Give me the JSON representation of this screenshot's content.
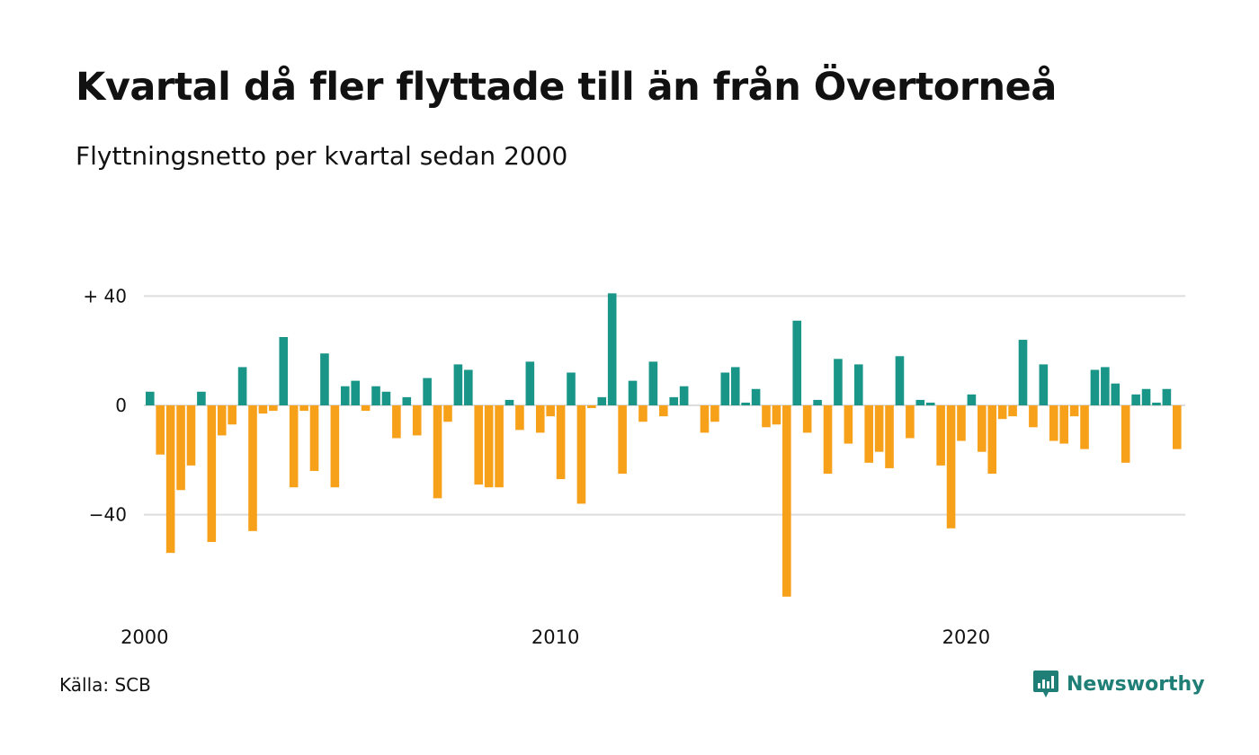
{
  "title": "Kvartal då fler flyttade till än från Övertorneå",
  "subtitle": "Flyttningsnetto per kvartal sedan 2000",
  "source": "Källa: SCB",
  "brand": {
    "name": "Newsworthy",
    "icon": "newsworthy-logo-icon"
  },
  "colors": {
    "positive": "#1a9688",
    "negative": "#f7a11a",
    "grid": "#dddddd",
    "brand": "#1f7f77"
  },
  "chart_data": {
    "type": "bar",
    "x_start": "2000 Q1",
    "frequency": "quarterly",
    "x_tick_labels": [
      "2000",
      "2010",
      "2020"
    ],
    "y_tick_labels": [
      "+ 40",
      "0",
      "−40"
    ],
    "y_ticks": [
      40,
      0,
      -40
    ],
    "ylim": [
      -70,
      42
    ],
    "grid": true,
    "values": [
      5,
      -18,
      -54,
      -31,
      -22,
      5,
      -50,
      -11,
      -7,
      14,
      -46,
      -3,
      -2,
      25,
      -30,
      -2,
      -24,
      19,
      -30,
      7,
      9,
      -2,
      7,
      5,
      -12,
      3,
      -11,
      10,
      -34,
      -6,
      15,
      13,
      -29,
      -30,
      -30,
      2,
      -9,
      16,
      -10,
      -4,
      -27,
      12,
      -36,
      -1,
      3,
      41,
      -25,
      9,
      -6,
      16,
      -4,
      3,
      7,
      0,
      -10,
      -6,
      12,
      14,
      1,
      6,
      -8,
      -7,
      -70,
      31,
      -10,
      2,
      -25,
      17,
      -14,
      15,
      -21,
      -17,
      -23,
      18,
      -12,
      2,
      1,
      -22,
      -45,
      -13,
      4,
      -17,
      -25,
      -5,
      -4,
      24,
      -8,
      15,
      -13,
      -14,
      -4,
      -16,
      13,
      14,
      8,
      -21,
      4,
      6,
      1,
      6,
      -16
    ]
  }
}
